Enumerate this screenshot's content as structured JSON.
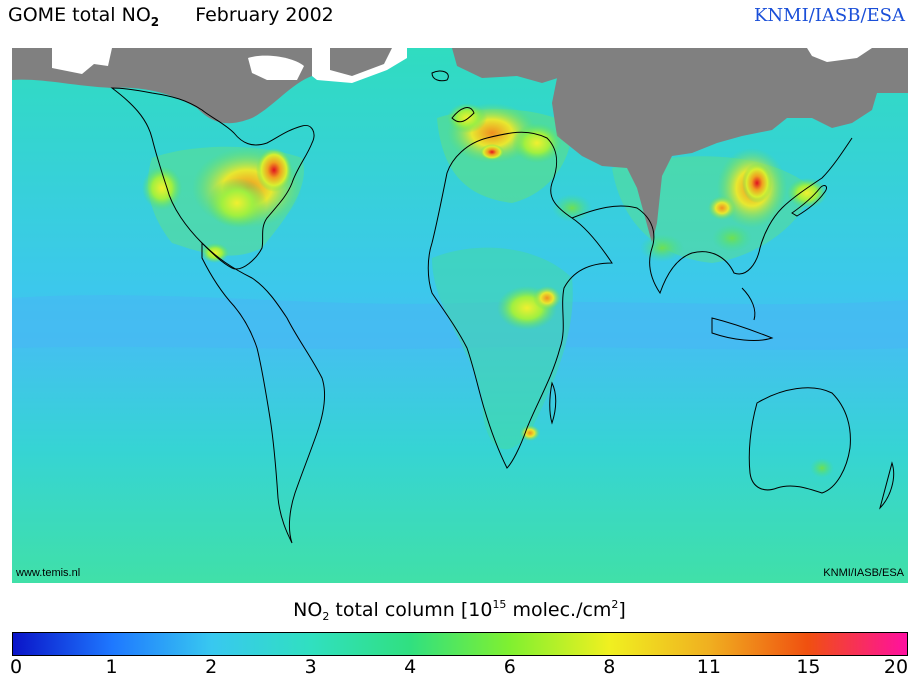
{
  "header": {
    "product": "GOME total NO",
    "product_sub": "2",
    "date": "February 2002",
    "credit": "KNMI/IASB/ESA"
  },
  "map": {
    "watermark_left": "www.temis.nl",
    "watermark_right": "KNMI/IASB/ESA",
    "no_data_color": "#808080",
    "background_color": "#36d8c0"
  },
  "colorbar": {
    "title_pre": "NO",
    "title_sub": "2",
    "title_mid": " total column [10",
    "title_sup_exp": "15",
    "title_mid2": " molec./cm",
    "title_sup_unit": "2",
    "title_end": "]",
    "ticks": [
      "0",
      "1",
      "2",
      "3",
      "4",
      "6",
      "8",
      "11",
      "15",
      "20"
    ],
    "colors": [
      "#0a14c8",
      "#1e78ff",
      "#38c8f0",
      "#30e0c0",
      "#30e080",
      "#80f030",
      "#f0f020",
      "#f0b020",
      "#f05010",
      "#ff10a0"
    ]
  }
}
